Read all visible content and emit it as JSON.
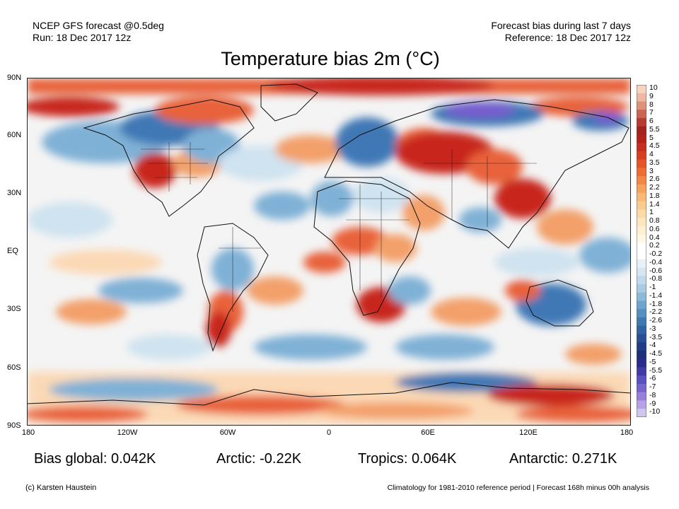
{
  "header": {
    "model_line": "NCEP GFS forecast @0.5deg",
    "run_line": "Run: 18 Dec 2017 12z",
    "bias_line": "Forecast bias during last 7 days",
    "reference_line": "Reference: 18 Dec 2017 12z"
  },
  "title": "Temperature bias 2m (°C)",
  "map": {
    "lat_labels": [
      "90N",
      "60N",
      "30N",
      "EQ",
      "30S",
      "60S",
      "90S"
    ],
    "lon_labels": [
      "180",
      "120W",
      "60W",
      "0",
      "60E",
      "120E",
      "180"
    ],
    "colors": {
      "ocean_neutral": "#f2f2f2",
      "warm_strong": "#c8281c",
      "warm": "#e8623a",
      "warm_light": "#f3a06a",
      "warm_pale": "#fbd9b6",
      "cool_pale": "#cfe3f0",
      "cool": "#7fb1d6",
      "cool_strong": "#3f78b5",
      "cold_purple": "#7a5ad0",
      "land_outline": "#111111"
    }
  },
  "colorbar": {
    "labels": [
      "10",
      "9",
      "8",
      "7",
      "6",
      "5.5",
      "5",
      "4.5",
      "4",
      "3.5",
      "3",
      "2.6",
      "2.2",
      "1.8",
      "1.4",
      "1",
      "0.8",
      "0.6",
      "0.4",
      "0.2",
      "-0.2",
      "-0.4",
      "-0.6",
      "-0.8",
      "-1",
      "-1.4",
      "-1.8",
      "-2.2",
      "-2.6",
      "-3",
      "-3.5",
      "-4",
      "-4.5",
      "-5",
      "-5.5",
      "-6",
      "-7",
      "-8",
      "-9",
      "-10"
    ],
    "colors": [
      "#f7d3c0",
      "#eeb8a4",
      "#e0917a",
      "#cc6454",
      "#b83c32",
      "#a4231f",
      "#b42219",
      "#c82d1e",
      "#d83e22",
      "#e55528",
      "#ee6e32",
      "#f38846",
      "#f7a25c",
      "#f9b874",
      "#fbcb8e",
      "#fcdaa6",
      "#fde6bd",
      "#feefd2",
      "#fff6e4",
      "#ffffff",
      "#ffffff",
      "#e8f1f8",
      "#d6e7f2",
      "#c1daeb",
      "#a9cce4",
      "#8cbad9",
      "#6fa5cd",
      "#5590c1",
      "#4079b2",
      "#3264a3",
      "#294f94",
      "#213d86",
      "#1c2f78",
      "#2a2b8c",
      "#3f3aa6",
      "#5a50be",
      "#7864cd",
      "#9880da",
      "#b6a2e6",
      "#d2c5f0"
    ]
  },
  "stats": {
    "global": "Bias global: 0.042K",
    "arctic": "Arctic: -0.22K",
    "tropics": "Tropics: 0.064K",
    "antarctic": "Antarctic: 0.271K"
  },
  "footer": {
    "credit": "(c) Karsten Haustein",
    "note": "Climatology for 1981-2010 reference period | Forecast 168h minus 00h analysis"
  }
}
